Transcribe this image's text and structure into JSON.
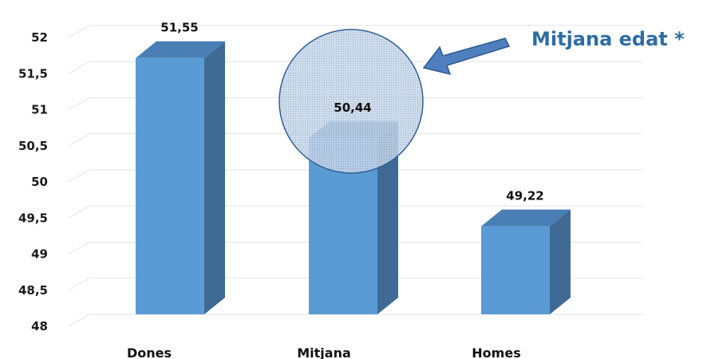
{
  "chart_data": {
    "type": "bar",
    "categories": [
      "Dones",
      "Mitjana",
      "Homes"
    ],
    "values": [
      51.55,
      50.44,
      49.22
    ],
    "value_labels": [
      "51,55",
      "50,44",
      "49,22"
    ],
    "y_ticks": [
      "48",
      "48,5",
      "49",
      "49,5",
      "50",
      "50,5",
      "51",
      "51,5",
      "52"
    ],
    "ylim": [
      48,
      52
    ],
    "grid": true,
    "style": "3d-bar",
    "highlight_category": "Mitjana",
    "annotation": "Mitjana edat *",
    "colors": {
      "bar_front": "#5b9bd5",
      "bar_side": "#3e6a94",
      "bar_top": "#4a7fb5",
      "annotation_text": "#2e6ca4",
      "arrow": "#4f7fbf",
      "highlight_circle_stroke": "#2f5f95",
      "highlight_circle_fill": "#c5d5e8",
      "grid": "#e3e3e3"
    }
  }
}
